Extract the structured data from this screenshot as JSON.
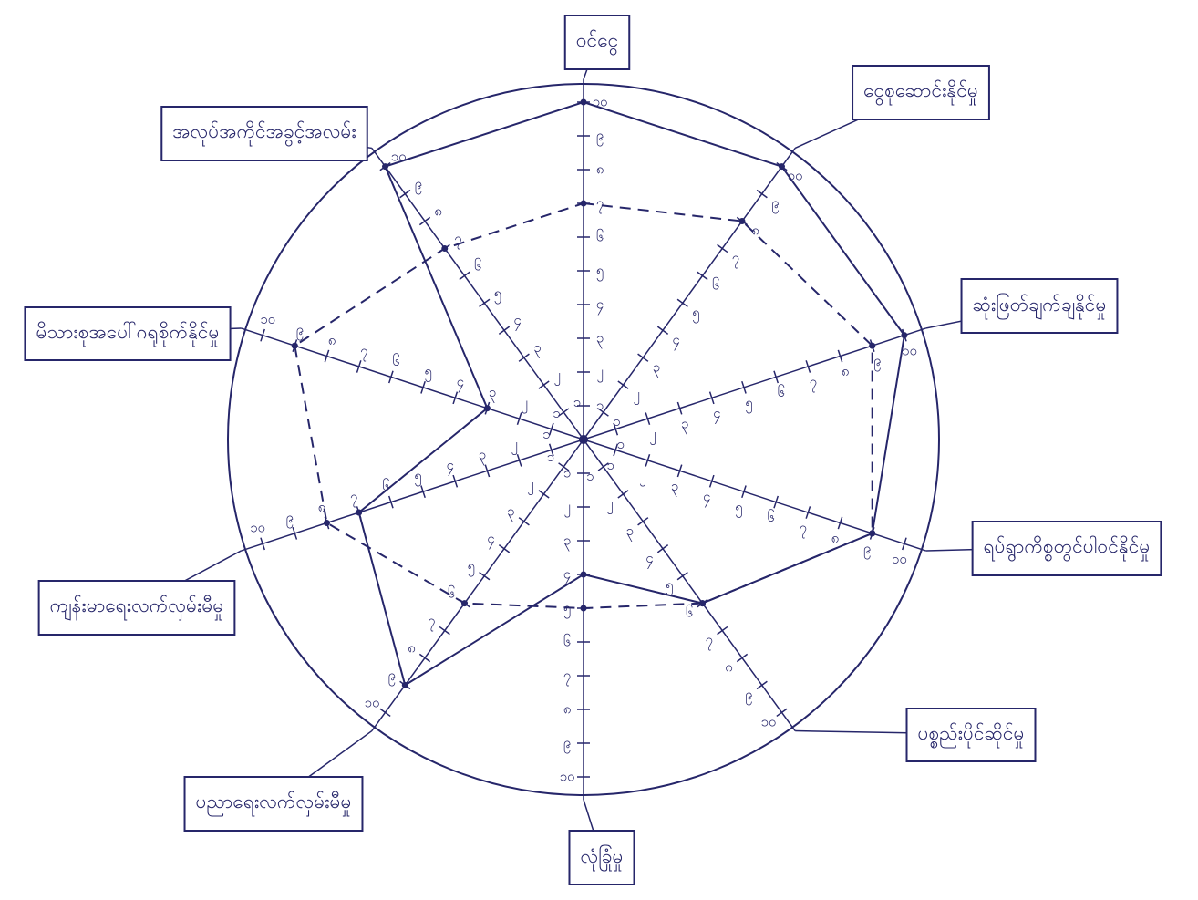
{
  "chart_data": {
    "type": "radar",
    "categories": [
      "ဝင်ငွေ",
      "ငွေစုဆောင်းနိုင်မှု",
      "ဆုံးဖြတ်ချက်ချနိုင်မှု",
      "ရပ်ရွာကိစ္စတွင်ပါဝင်နိုင်မှု",
      "ပစ္စည်းပိုင်ဆိုင်မှု",
      "လုံခြုံမှု",
      "ပညာရေးလက်လှမ်းမီမှု",
      "ကျန်းမာရေးလက်လှမ်းမီမှု",
      "မိသားစုအပေါ်ဂရုစိုက်နိုင်မှု",
      "အလုပ်အကိုင်အခွင့်အလမ်း"
    ],
    "series": [
      {
        "color": "#26266a",
        "line_style": "solid",
        "values": [
          10,
          10,
          10,
          9,
          6,
          4,
          9,
          7,
          3,
          10
        ]
      },
      {
        "color": "#26266a",
        "line_style": "dashed",
        "values": [
          7,
          8,
          9,
          9,
          6,
          5,
          6,
          8,
          9,
          7
        ]
      }
    ],
    "rlim": [
      0,
      10
    ],
    "rticks": [
      {
        "value": 1,
        "label": "၁"
      },
      {
        "value": 2,
        "label": "၂"
      },
      {
        "value": 3,
        "label": "၃"
      },
      {
        "value": 4,
        "label": "၄"
      },
      {
        "value": 5,
        "label": "၅"
      },
      {
        "value": 6,
        "label": "၆"
      },
      {
        "value": 7,
        "label": "၇"
      },
      {
        "value": 8,
        "label": "၈"
      },
      {
        "value": 9,
        "label": "၉"
      },
      {
        "value": 10,
        "label": "၁၀"
      }
    ]
  }
}
